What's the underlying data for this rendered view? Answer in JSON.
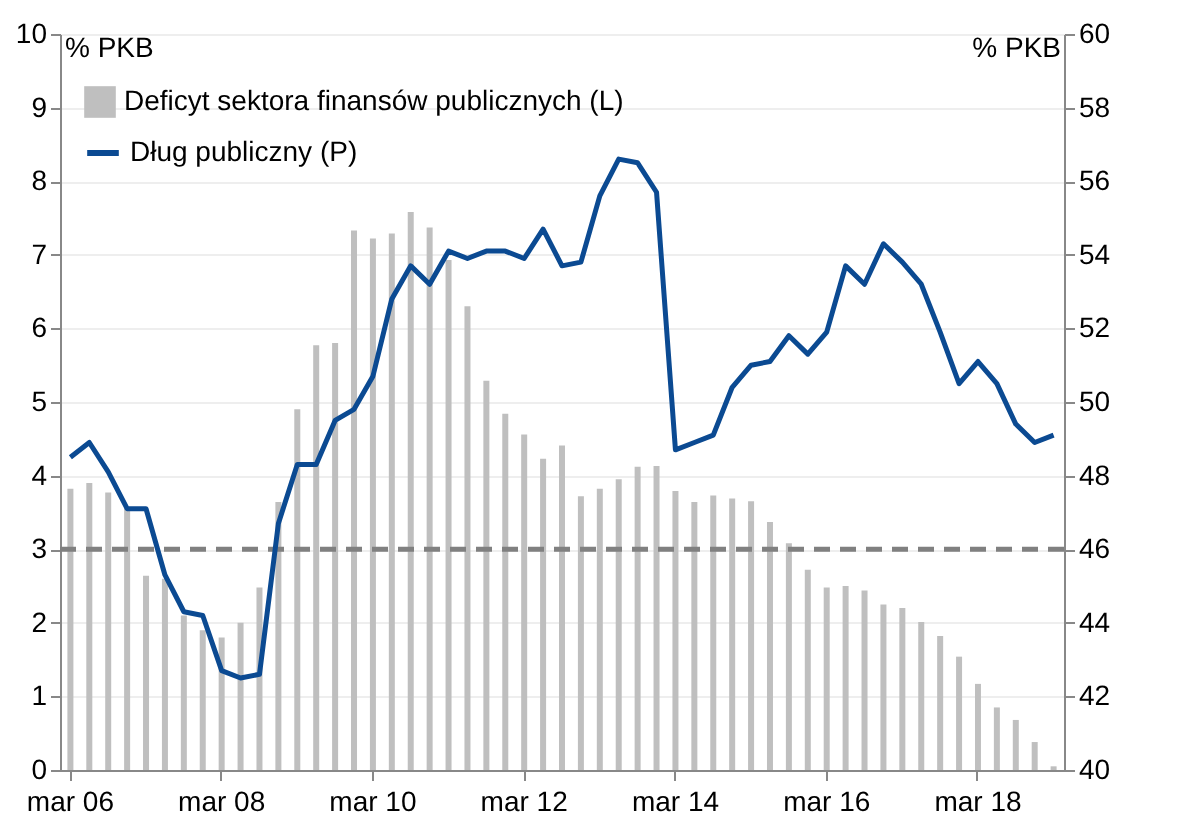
{
  "chart_data": {
    "type": "bar",
    "categories": [
      "mar 06",
      null,
      null,
      null,
      null,
      null,
      null,
      null,
      "mar 08",
      null,
      null,
      null,
      null,
      null,
      null,
      null,
      "mar 10",
      null,
      null,
      null,
      null,
      null,
      null,
      null,
      "mar 12",
      null,
      null,
      null,
      null,
      null,
      null,
      null,
      "mar 14",
      null,
      null,
      null,
      null,
      null,
      null,
      null,
      "mar 16",
      null,
      null,
      null,
      null,
      null,
      null,
      null,
      "mar 18",
      null,
      null,
      null,
      null
    ],
    "series": [
      {
        "name": "Deficyt sektora finansów publicznych (L)",
        "color": "#bfbfbf",
        "values": [
          3.82,
          3.9,
          3.77,
          3.56,
          2.64,
          2.6,
          2.1,
          1.9,
          1.8,
          2.0,
          2.48,
          3.64,
          4.9,
          5.77,
          5.8,
          7.33,
          7.22,
          7.29,
          7.58,
          7.37,
          6.93,
          6.3,
          5.29,
          4.84,
          4.56,
          4.23,
          4.41,
          3.72,
          3.82,
          3.95,
          4.12,
          4.13,
          3.79,
          3.64,
          3.73,
          3.69,
          3.65,
          3.37,
          3.08,
          2.72,
          2.48,
          2.5,
          2.44,
          2.25,
          2.2,
          2.01,
          1.82,
          1.54,
          1.17,
          0.85,
          0.68,
          0.38,
          0.05
        ]
      },
      {
        "name": "Dług publiczny (P)",
        "type": "line",
        "axis": "y2",
        "color": "#0b4a92",
        "values": [
          48.5,
          48.9,
          48.1,
          47.1,
          47.1,
          45.3,
          44.3,
          44.2,
          42.7,
          42.5,
          42.6,
          46.7,
          48.3,
          48.3,
          49.5,
          49.8,
          50.7,
          52.8,
          53.7,
          53.2,
          54.1,
          53.9,
          54.1,
          54.1,
          53.9,
          54.7,
          53.7,
          53.8,
          55.6,
          56.6,
          56.5,
          55.7,
          48.7,
          48.9,
          49.1,
          50.4,
          51.0,
          51.1,
          51.8,
          51.3,
          51.9,
          53.7,
          53.2,
          54.3,
          53.8,
          53.2,
          51.9,
          50.5,
          51.1,
          50.5,
          49.4,
          48.9,
          49.1
        ]
      }
    ],
    "ylabel": "% PKB",
    "y2label": "% PKB",
    "ylim": [
      0,
      10
    ],
    "yticks": [
      0,
      1,
      2,
      3,
      4,
      5,
      6,
      7,
      8,
      9,
      10
    ],
    "y2lim": [
      40,
      60
    ],
    "y2ticks": [
      40,
      42,
      44,
      46,
      48,
      50,
      52,
      54,
      56,
      58,
      60
    ],
    "ref_lines": [
      {
        "axis": "y",
        "value": 3,
        "color": "#808080",
        "line_style": "dashed"
      }
    ],
    "grid": "y",
    "legend": "top left"
  }
}
